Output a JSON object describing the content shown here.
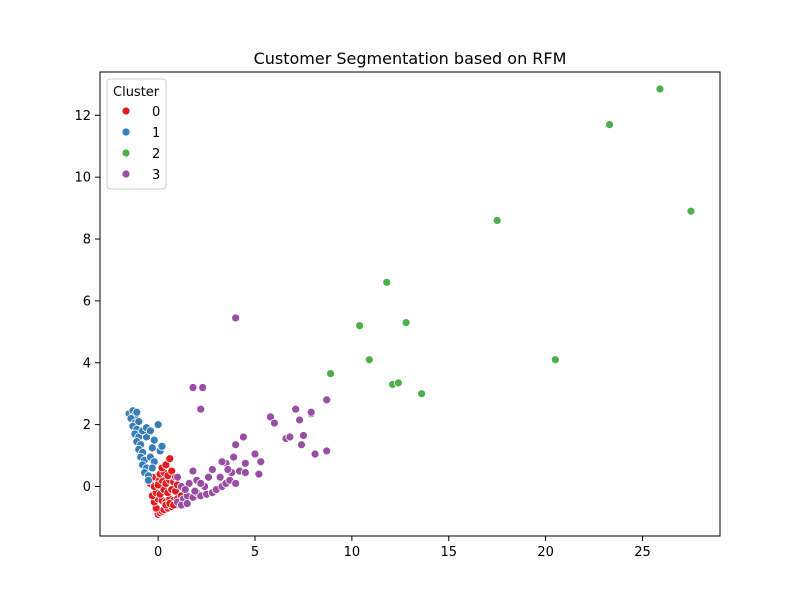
{
  "chart_data": {
    "type": "scatter",
    "title": "Customer Segmentation based on RFM",
    "xlabel": "",
    "ylabel": "",
    "xlim": [
      -3.0,
      29.0
    ],
    "ylim": [
      -1.6,
      13.4
    ],
    "xticks": [
      0,
      5,
      10,
      15,
      20,
      25
    ],
    "yticks": [
      0,
      2,
      4,
      6,
      8,
      10,
      12
    ],
    "grid": false,
    "legend": {
      "title": "Cluster",
      "placement": "top-left"
    },
    "series": [
      {
        "name": "0",
        "color": "#e41a1c",
        "points": [
          [
            0.0,
            -0.9
          ],
          [
            0.1,
            -0.85
          ],
          [
            0.2,
            -0.8
          ],
          [
            -0.1,
            -0.7
          ],
          [
            0.3,
            -0.75
          ],
          [
            0.5,
            -0.7
          ],
          [
            0.7,
            -0.65
          ],
          [
            0.9,
            -0.6
          ],
          [
            -0.2,
            -0.5
          ],
          [
            0.0,
            -0.4
          ],
          [
            0.2,
            -0.45
          ],
          [
            0.4,
            -0.5
          ],
          [
            0.6,
            -0.4
          ],
          [
            0.8,
            -0.45
          ],
          [
            1.0,
            -0.4
          ],
          [
            -0.3,
            -0.3
          ],
          [
            -0.1,
            -0.2
          ],
          [
            0.1,
            -0.25
          ],
          [
            0.3,
            -0.1
          ],
          [
            0.5,
            -0.2
          ],
          [
            0.7,
            -0.1
          ],
          [
            0.9,
            -0.15
          ],
          [
            -0.4,
            0.1
          ],
          [
            -0.2,
            0.0
          ],
          [
            0.0,
            0.05
          ],
          [
            0.2,
            0.2
          ],
          [
            0.4,
            0.1
          ],
          [
            0.6,
            0.2
          ],
          [
            0.8,
            0.15
          ],
          [
            1.0,
            0.05
          ],
          [
            -0.1,
            0.3
          ],
          [
            0.1,
            0.4
          ],
          [
            0.3,
            0.45
          ],
          [
            0.5,
            0.35
          ],
          [
            0.7,
            0.5
          ],
          [
            0.9,
            0.3
          ],
          [
            0.2,
            0.6
          ],
          [
            0.4,
            0.7
          ],
          [
            0.6,
            0.9
          ],
          [
            0.4,
            -0.6
          ],
          [
            0.6,
            -0.55
          ],
          [
            -0.3,
            0.3
          ],
          [
            1.2,
            -0.3
          ],
          [
            0.8,
            -0.6
          ]
        ]
      },
      {
        "name": "1",
        "color": "#377eb8",
        "points": [
          [
            -1.5,
            2.35
          ],
          [
            -1.3,
            2.45
          ],
          [
            -1.2,
            2.3
          ],
          [
            -1.1,
            2.4
          ],
          [
            -1.4,
            2.2
          ],
          [
            -1.2,
            2.05
          ],
          [
            -1.3,
            1.95
          ],
          [
            -1.1,
            1.85
          ],
          [
            -1.2,
            1.7
          ],
          [
            -1.0,
            1.6
          ],
          [
            -1.1,
            1.45
          ],
          [
            -0.9,
            1.35
          ],
          [
            -1.0,
            1.2
          ],
          [
            -0.8,
            1.1
          ],
          [
            -0.9,
            0.95
          ],
          [
            -0.7,
            0.85
          ],
          [
            -0.8,
            0.7
          ],
          [
            -0.6,
            0.6
          ],
          [
            -0.7,
            0.45
          ],
          [
            -0.5,
            0.35
          ],
          [
            -0.5,
            0.2
          ],
          [
            -0.4,
            0.95
          ],
          [
            -0.3,
            1.25
          ],
          [
            -0.2,
            1.5
          ],
          [
            -0.6,
            1.6
          ],
          [
            -0.8,
            1.8
          ],
          [
            0.0,
            2.0
          ],
          [
            0.1,
            1.15
          ],
          [
            0.2,
            1.3
          ],
          [
            -0.2,
            0.8
          ],
          [
            -0.3,
            0.6
          ],
          [
            -0.6,
            1.9
          ],
          [
            -1.0,
            2.1
          ],
          [
            -0.4,
            1.8
          ]
        ]
      },
      {
        "name": "2",
        "color": "#4daf4a",
        "points": [
          [
            25.9,
            12.85
          ],
          [
            23.3,
            11.7
          ],
          [
            27.5,
            8.9
          ],
          [
            17.5,
            8.6
          ],
          [
            11.8,
            6.6
          ],
          [
            10.4,
            5.2
          ],
          [
            12.8,
            5.3
          ],
          [
            20.5,
            4.1
          ],
          [
            10.9,
            4.1
          ],
          [
            8.9,
            3.65
          ],
          [
            12.1,
            3.3
          ],
          [
            12.4,
            3.35
          ],
          [
            13.6,
            3.0
          ]
        ]
      },
      {
        "name": "3",
        "color": "#984ea3",
        "points": [
          [
            4.0,
            5.45
          ],
          [
            1.8,
            3.2
          ],
          [
            2.3,
            3.2
          ],
          [
            2.2,
            2.5
          ],
          [
            5.8,
            2.25
          ],
          [
            6.0,
            2.05
          ],
          [
            6.6,
            1.55
          ],
          [
            6.8,
            1.6
          ],
          [
            7.1,
            2.5
          ],
          [
            7.3,
            2.15
          ],
          [
            7.4,
            1.35
          ],
          [
            7.5,
            1.65
          ],
          [
            7.9,
            2.35
          ],
          [
            7.9,
            2.4
          ],
          [
            8.7,
            2.8
          ],
          [
            8.7,
            1.15
          ],
          [
            8.1,
            1.05
          ],
          [
            4.4,
            1.6
          ],
          [
            4.0,
            1.35
          ],
          [
            5.0,
            1.05
          ],
          [
            5.3,
            0.8
          ],
          [
            5.2,
            0.4
          ],
          [
            4.5,
            0.75
          ],
          [
            4.2,
            0.5
          ],
          [
            4.5,
            0.45
          ],
          [
            3.8,
            0.45
          ],
          [
            3.5,
            0.75
          ],
          [
            3.3,
            0.8
          ],
          [
            3.9,
            0.95
          ],
          [
            1.0,
            -0.5
          ],
          [
            1.3,
            -0.4
          ],
          [
            1.5,
            -0.3
          ],
          [
            1.8,
            -0.35
          ],
          [
            2.0,
            -0.2
          ],
          [
            2.2,
            -0.3
          ],
          [
            2.5,
            -0.25
          ],
          [
            2.8,
            -0.2
          ],
          [
            3.0,
            -0.1
          ],
          [
            3.3,
            0.0
          ],
          [
            3.5,
            0.1
          ],
          [
            3.7,
            0.2
          ],
          [
            2.4,
            0.0
          ],
          [
            2.0,
            0.2
          ],
          [
            1.6,
            0.1
          ],
          [
            1.2,
            0.0
          ],
          [
            1.4,
            -0.1
          ],
          [
            1.8,
            0.5
          ],
          [
            2.8,
            0.55
          ],
          [
            3.2,
            0.3
          ],
          [
            2.6,
            0.3
          ],
          [
            1.0,
            0.3
          ],
          [
            1.2,
            -0.6
          ],
          [
            1.5,
            -0.55
          ],
          [
            1.9,
            -0.15
          ],
          [
            2.2,
            0.1
          ],
          [
            3.6,
            0.55
          ],
          [
            4.0,
            0.1
          ]
        ]
      }
    ]
  }
}
